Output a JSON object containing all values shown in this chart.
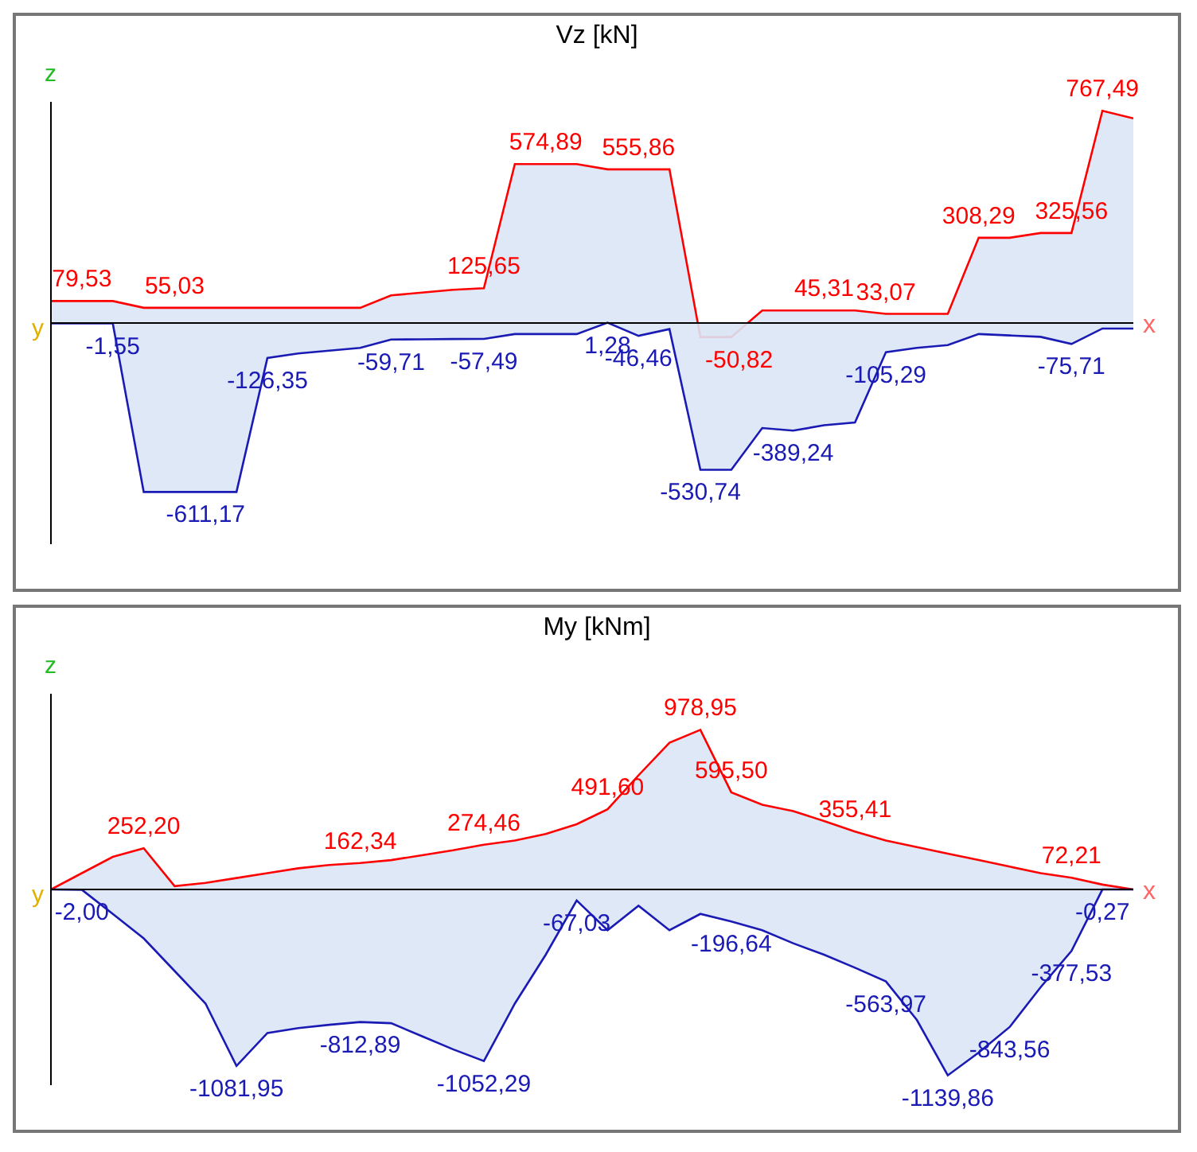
{
  "chart_data": [
    {
      "type": "area",
      "title": "Vz [kN]",
      "xlabel": "x",
      "ylabel": "z",
      "annotations": [
        "y"
      ],
      "tick_labels": false,
      "legend": false,
      "grid": false,
      "categories": [
        null,
        null,
        null,
        null,
        null,
        null,
        null,
        null,
        null,
        null,
        null,
        null,
        null,
        null,
        null,
        null,
        null,
        null,
        null,
        null,
        null,
        null,
        null,
        null,
        null,
        null,
        null,
        null,
        null,
        null,
        null,
        null,
        null,
        null,
        null,
        null
      ],
      "series": [
        {
          "color": "#ff0000",
          "values": [
            79.53,
            79.53,
            79.53,
            55.03,
            55.03,
            55.03,
            55.03,
            55,
            55,
            55,
            55,
            100,
            110,
            120,
            125.65,
            574.89,
            574.89,
            574.89,
            555.86,
            555.86,
            555.86,
            -50.82,
            -50.82,
            45.31,
            45.31,
            45.31,
            45.31,
            33.07,
            33.07,
            33.07,
            308.29,
            308.29,
            325.56,
            325.56,
            767.49,
            740
          ],
          "value_labels": [
            null,
            "79,53",
            null,
            null,
            "55,03",
            null,
            null,
            null,
            null,
            null,
            null,
            null,
            null,
            null,
            "125,65",
            null,
            "574,89",
            null,
            null,
            "555,86",
            null,
            "-50,82",
            null,
            null,
            null,
            "45,31",
            null,
            "33,07",
            null,
            null,
            "308,29",
            null,
            null,
            "325,56",
            "767,49",
            null
          ]
        },
        {
          "color": "#1a1ab4",
          "values": [
            -1.55,
            -1.55,
            -1.55,
            -611.17,
            -611.17,
            -611.17,
            -611.17,
            -126.35,
            -110,
            -100,
            -90,
            -59.71,
            -59,
            -58,
            -57.49,
            -40,
            -40,
            -40,
            1.28,
            -46.46,
            -22,
            -530.74,
            -530.74,
            -380,
            -389.24,
            -370,
            -360,
            -105.29,
            -90,
            -80,
            -40,
            -45,
            -50,
            -75.71,
            -20,
            -20
          ],
          "value_labels": [
            null,
            null,
            "-1,55",
            null,
            null,
            "-611,17",
            null,
            "-126,35",
            null,
            null,
            null,
            "-59,71",
            null,
            null,
            "-57,49",
            null,
            null,
            null,
            "1,28",
            "-46,46",
            null,
            "-530,74",
            null,
            null,
            "-389,24",
            null,
            null,
            "-105,29",
            null,
            null,
            null,
            null,
            null,
            "-75,71",
            null,
            null
          ]
        }
      ]
    },
    {
      "type": "area",
      "title": "My [kNm]",
      "xlabel": "x",
      "ylabel": "z",
      "annotations": [
        "y"
      ],
      "tick_labels": false,
      "legend": false,
      "grid": false,
      "categories": [
        null,
        null,
        null,
        null,
        null,
        null,
        null,
        null,
        null,
        null,
        null,
        null,
        null,
        null,
        null,
        null,
        null,
        null,
        null,
        null,
        null,
        null,
        null,
        null,
        null,
        null,
        null,
        null,
        null,
        null,
        null,
        null,
        null,
        null,
        null,
        null
      ],
      "series": [
        {
          "color": "#ff0000",
          "values": [
            0,
            100,
            200,
            252.2,
            20,
            40,
            70,
            100,
            130,
            150,
            162.34,
            180,
            210,
            240,
            274.46,
            300,
            340,
            400,
            491.6,
            700,
            900,
            978.95,
            595.5,
            520,
            480,
            420,
            355.41,
            300,
            260,
            220,
            180,
            140,
            100,
            72.21,
            30,
            0
          ],
          "value_labels": [
            null,
            null,
            null,
            "252,20",
            null,
            null,
            null,
            null,
            null,
            null,
            "162,34",
            null,
            null,
            null,
            "274,46",
            null,
            null,
            null,
            "491,60",
            null,
            null,
            "978,95",
            "595,50",
            null,
            null,
            null,
            "355,41",
            null,
            null,
            null,
            null,
            null,
            null,
            "72,21",
            null,
            null
          ]
        },
        {
          "color": "#1a1ab4",
          "values": [
            0,
            -2,
            -150,
            -300,
            -500,
            -700,
            -1081.95,
            -880,
            -850,
            -830,
            -812.89,
            -820,
            -900,
            -980,
            -1052.29,
            -700,
            -400,
            -67.03,
            -250,
            -100,
            -250,
            -150,
            -196.64,
            -250,
            -330,
            -400,
            -480,
            -563.97,
            -800,
            -1139.86,
            -1000,
            -843.56,
            -600,
            -377.53,
            -0.27,
            0
          ],
          "value_labels": [
            null,
            "-2,00",
            null,
            null,
            null,
            null,
            "-1081,95",
            null,
            null,
            null,
            "-812,89",
            null,
            null,
            null,
            "-1052,29",
            null,
            null,
            "-67,03",
            null,
            null,
            null,
            null,
            "-196,64",
            null,
            null,
            null,
            null,
            "-563,97",
            null,
            "-1139,86",
            null,
            "-843,56",
            null,
            "-377,53",
            "-0,27",
            null
          ]
        }
      ]
    }
  ]
}
